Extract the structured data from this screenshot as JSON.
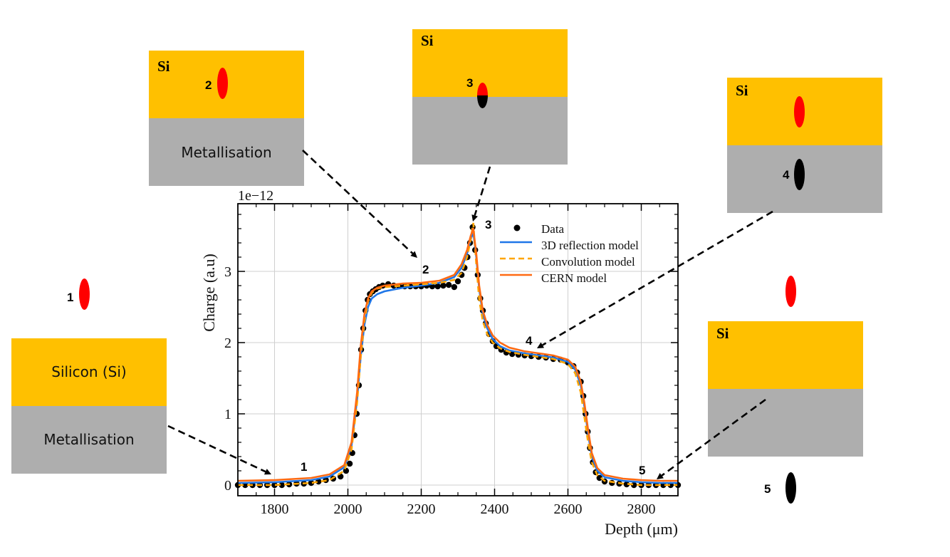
{
  "chart_data": {
    "type": "line",
    "title": "",
    "xlabel": "Depth (μm)",
    "ylabel": "Charge (a.u)",
    "y_scale_label": "1e−12",
    "xlim": [
      1700,
      2900
    ],
    "ylim": [
      -0.15,
      3.95
    ],
    "xticks": [
      1800,
      2000,
      2200,
      2400,
      2600,
      2800
    ],
    "yticks": [
      0,
      1,
      2,
      3
    ],
    "grid": true,
    "legend_position": "top-right",
    "legend": [
      "Data",
      "3D reflection model",
      "Convolution model",
      "CERN model"
    ],
    "colors": {
      "data": "#000000",
      "reflection_3d": "#1F77E8",
      "convolution": "#FFA500",
      "cern": "#FF6A13"
    },
    "series": [
      {
        "name": "Data",
        "style": "markers",
        "x": [
          1700,
          1720,
          1740,
          1760,
          1780,
          1800,
          1820,
          1840,
          1860,
          1880,
          1900,
          1920,
          1940,
          1960,
          1980,
          1995,
          2005,
          2012,
          2018,
          2024,
          2030,
          2036,
          2042,
          2048,
          2054,
          2060,
          2068,
          2076,
          2085,
          2095,
          2110,
          2125,
          2140,
          2155,
          2170,
          2185,
          2200,
          2215,
          2230,
          2245,
          2260,
          2275,
          2290,
          2300,
          2310,
          2318,
          2326,
          2333,
          2340,
          2347,
          2354,
          2361,
          2368,
          2376,
          2385,
          2395,
          2405,
          2418,
          2432,
          2448,
          2465,
          2482,
          2500,
          2520,
          2540,
          2560,
          2580,
          2600,
          2615,
          2625,
          2635,
          2642,
          2648,
          2654,
          2660,
          2668,
          2676,
          2686,
          2700,
          2720,
          2740,
          2760,
          2780,
          2800,
          2820,
          2840,
          2860,
          2880,
          2900
        ],
        "y": [
          0.0,
          0.0,
          0.0,
          0.0,
          0.0,
          0.0,
          0.0,
          0.01,
          0.02,
          0.02,
          0.03,
          0.05,
          0.07,
          0.09,
          0.12,
          0.2,
          0.3,
          0.45,
          0.7,
          1.0,
          1.4,
          1.9,
          2.2,
          2.45,
          2.6,
          2.68,
          2.72,
          2.75,
          2.78,
          2.8,
          2.82,
          2.8,
          2.79,
          2.79,
          2.79,
          2.79,
          2.79,
          2.8,
          2.79,
          2.79,
          2.8,
          2.81,
          2.78,
          2.86,
          2.95,
          3.05,
          3.2,
          3.4,
          3.62,
          3.3,
          2.95,
          2.62,
          2.45,
          2.27,
          2.12,
          2.02,
          1.95,
          1.9,
          1.86,
          1.84,
          1.83,
          1.82,
          1.81,
          1.8,
          1.79,
          1.77,
          1.76,
          1.72,
          1.67,
          1.58,
          1.45,
          1.25,
          1.0,
          0.75,
          0.52,
          0.32,
          0.18,
          0.1,
          0.05,
          0.03,
          0.02,
          0.01,
          0.0,
          0.0,
          0.0,
          0.0,
          0.0,
          0.0,
          0.0
        ]
      },
      {
        "name": "3D reflection model",
        "style": "solid",
        "x": [
          1700,
          1800,
          1900,
          1950,
          1990,
          2010,
          2025,
          2035,
          2045,
          2055,
          2065,
          2080,
          2100,
          2150,
          2200,
          2250,
          2290,
          2310,
          2325,
          2335,
          2342,
          2350,
          2358,
          2368,
          2380,
          2395,
          2415,
          2440,
          2480,
          2520,
          2560,
          2600,
          2620,
          2635,
          2645,
          2655,
          2665,
          2680,
          2700,
          2750,
          2800,
          2850,
          2900
        ],
        "y": [
          0.03,
          0.04,
          0.07,
          0.12,
          0.25,
          0.55,
          1.2,
          1.8,
          2.25,
          2.5,
          2.62,
          2.68,
          2.72,
          2.77,
          2.8,
          2.84,
          2.92,
          3.05,
          3.25,
          3.45,
          3.55,
          3.2,
          2.75,
          2.4,
          2.2,
          2.05,
          1.95,
          1.89,
          1.85,
          1.82,
          1.79,
          1.73,
          1.62,
          1.4,
          1.1,
          0.72,
          0.4,
          0.2,
          0.11,
          0.06,
          0.04,
          0.03,
          0.03
        ]
      },
      {
        "name": "Convolution model",
        "style": "dashed",
        "x": [
          1700,
          1800,
          1900,
          1950,
          1990,
          2010,
          2025,
          2035,
          2045,
          2055,
          2065,
          2080,
          2100,
          2150,
          2200,
          2250,
          2290,
          2310,
          2325,
          2335,
          2342,
          2350,
          2358,
          2368,
          2380,
          2395,
          2415,
          2440,
          2480,
          2520,
          2560,
          2600,
          2620,
          2635,
          2645,
          2655,
          2665,
          2680,
          2700,
          2750,
          2800,
          2850,
          2900
        ],
        "y": [
          0.0,
          0.0,
          0.03,
          0.07,
          0.2,
          0.5,
          1.15,
          1.8,
          2.3,
          2.58,
          2.7,
          2.76,
          2.78,
          2.8,
          2.82,
          2.84,
          2.88,
          2.98,
          3.2,
          3.45,
          3.68,
          3.1,
          2.6,
          2.3,
          2.12,
          2.0,
          1.92,
          1.87,
          1.83,
          1.8,
          1.77,
          1.7,
          1.57,
          1.3,
          0.95,
          0.6,
          0.32,
          0.14,
          0.06,
          0.02,
          0.0,
          0.0,
          0.0
        ]
      },
      {
        "name": "CERN model",
        "style": "solid",
        "x": [
          1700,
          1800,
          1900,
          1950,
          1990,
          2010,
          2025,
          2035,
          2045,
          2055,
          2065,
          2080,
          2100,
          2150,
          2200,
          2250,
          2290,
          2310,
          2325,
          2335,
          2342,
          2350,
          2358,
          2368,
          2380,
          2395,
          2415,
          2440,
          2480,
          2520,
          2560,
          2600,
          2620,
          2635,
          2645,
          2655,
          2665,
          2680,
          2700,
          2750,
          2800,
          2850,
          2900
        ],
        "y": [
          0.06,
          0.07,
          0.1,
          0.15,
          0.28,
          0.6,
          1.3,
          1.95,
          2.4,
          2.62,
          2.72,
          2.77,
          2.8,
          2.83,
          2.84,
          2.87,
          2.95,
          3.1,
          3.3,
          3.5,
          3.6,
          3.25,
          2.8,
          2.45,
          2.25,
          2.1,
          2.0,
          1.93,
          1.88,
          1.85,
          1.82,
          1.76,
          1.66,
          1.45,
          1.15,
          0.78,
          0.45,
          0.24,
          0.14,
          0.09,
          0.07,
          0.06,
          0.06
        ]
      }
    ],
    "annotations": [
      {
        "label": "1",
        "x": 1800,
        "y": 0.05
      },
      {
        "label": "2",
        "x": 2185,
        "y": 2.82
      },
      {
        "label": "3",
        "x": 2342,
        "y": 3.7
      },
      {
        "label": "4",
        "x": 2520,
        "y": 1.9
      },
      {
        "label": "5",
        "x": 2840,
        "y": 0.05
      }
    ]
  },
  "schematics": {
    "panel1": {
      "si_label": "Silicon (Si)",
      "metal_label": "Metallisation",
      "marker": "1"
    },
    "panel2": {
      "si_label": "Si",
      "metal_label": "Metallisation",
      "marker": "2"
    },
    "panel3": {
      "si_label": "Si",
      "marker": "3"
    },
    "panel4": {
      "si_label": "Si",
      "marker": "4"
    },
    "panel5": {
      "si_label": "Si",
      "marker": "5"
    }
  },
  "colors": {
    "silicon": "#FFC000",
    "metallisation": "#AEAEAE",
    "charge_in_si": "#FF0000",
    "charge_in_metal": "#000000"
  }
}
